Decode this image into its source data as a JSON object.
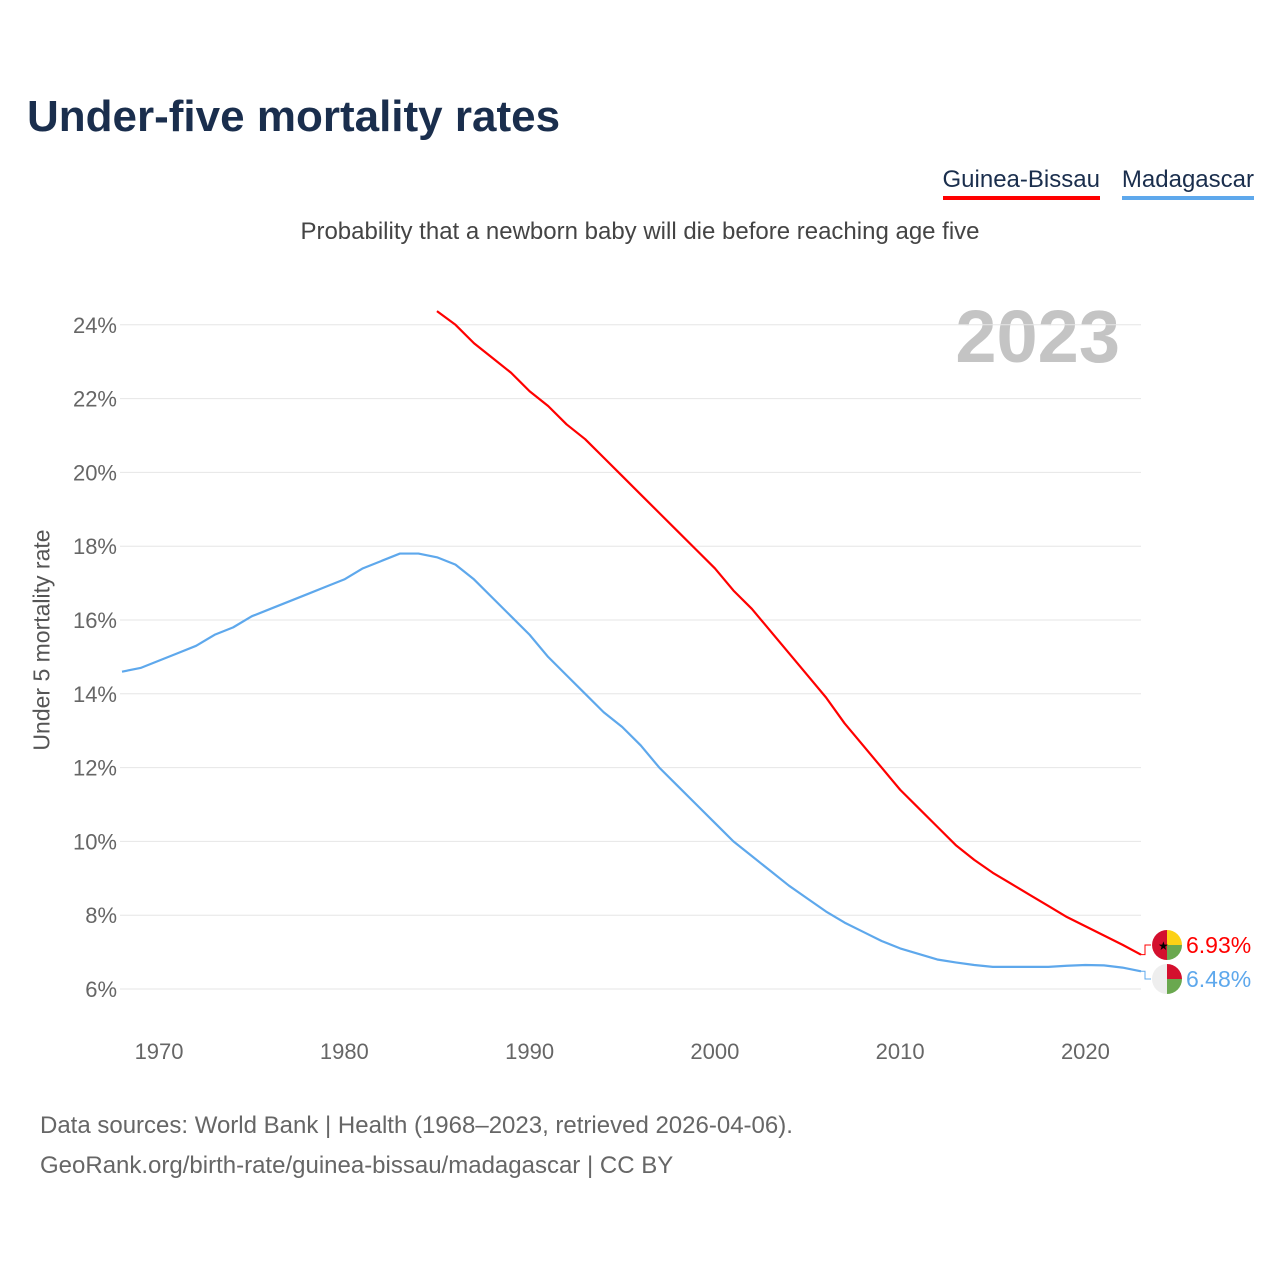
{
  "title": "Under-five mortality rates",
  "subtitle": "Probability that a newborn baby will die before reaching age five",
  "footer": {
    "line1": "Data sources: World Bank | Health (1968–2023, retrieved 2026-04-06).",
    "line2": "GeoRank.org/birth-rate/guinea-bissau/madagascar | CC BY"
  },
  "chart_data": {
    "type": "line",
    "title": "Under-five mortality rates",
    "ylabel": "Under 5 mortality rate",
    "xlabel": "",
    "year_label": "2023",
    "xlim": [
      1968,
      2023
    ],
    "ylim": [
      5,
      25
    ],
    "x_ticks": [
      1970,
      1980,
      1990,
      2000,
      2010,
      2020
    ],
    "y_ticks": [
      6,
      8,
      10,
      12,
      14,
      16,
      18,
      20,
      22,
      24
    ],
    "y_tick_labels": [
      "6%",
      "8%",
      "10%",
      "12%",
      "14%",
      "16%",
      "18%",
      "20%",
      "22%",
      "24%"
    ],
    "grid": true,
    "legend_position": "top-right",
    "series": [
      {
        "name": "Guinea-Bissau",
        "color": "#ff0000",
        "end_label": "6.93%",
        "x_start": 1985,
        "values": [
          24.37,
          24.0,
          23.5,
          23.1,
          22.7,
          22.2,
          21.8,
          21.3,
          20.9,
          20.4,
          19.9,
          19.4,
          18.9,
          18.4,
          17.9,
          17.4,
          16.8,
          16.3,
          15.7,
          15.1,
          14.5,
          13.9,
          13.2,
          12.6,
          12.0,
          11.4,
          10.9,
          10.4,
          9.9,
          9.5,
          9.15,
          8.85,
          8.55,
          8.25,
          7.95,
          7.7,
          7.45,
          7.2,
          6.93
        ]
      },
      {
        "name": "Madagascar",
        "color": "#5ea8ec",
        "end_label": "6.48%",
        "x_start": 1968,
        "values": [
          14.6,
          14.7,
          14.9,
          15.1,
          15.3,
          15.6,
          15.8,
          16.1,
          16.3,
          16.5,
          16.7,
          16.9,
          17.1,
          17.4,
          17.6,
          17.8,
          17.8,
          17.7,
          17.5,
          17.1,
          16.6,
          16.1,
          15.6,
          15.0,
          14.5,
          14.0,
          13.5,
          13.1,
          12.6,
          12.0,
          11.5,
          11.0,
          10.5,
          10.0,
          9.6,
          9.2,
          8.8,
          8.45,
          8.1,
          7.8,
          7.55,
          7.3,
          7.1,
          6.95,
          6.8,
          6.72,
          6.65,
          6.6,
          6.6,
          6.6,
          6.6,
          6.63,
          6.65,
          6.64,
          6.58,
          6.48
        ]
      }
    ]
  }
}
